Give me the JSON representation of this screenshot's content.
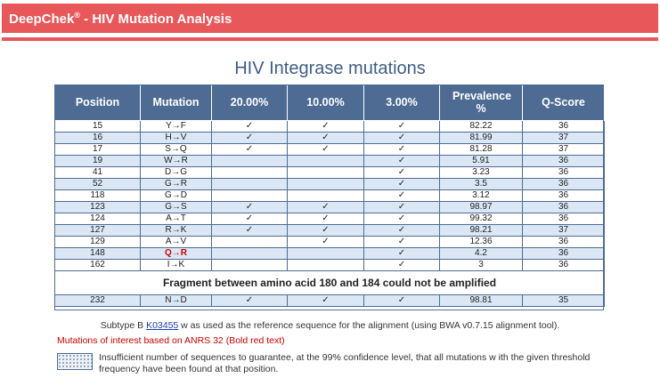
{
  "header": {
    "brand": "DeepChek",
    "reg": "®",
    "title_suffix": " - HIV Mutation Analysis"
  },
  "title": "HIV Integrase mutations",
  "table": {
    "columns": [
      "Position",
      "Mutation",
      "20.00%",
      "10.00%",
      "3.00%",
      "Prevalence %",
      "Q-Score"
    ],
    "rows": [
      {
        "position": "15",
        "mutation": "Y→F",
        "c20": "✓",
        "c10": "✓",
        "c3": "✓",
        "prevalence": "82.22",
        "qscore": "36",
        "highlight": false,
        "bold": false
      },
      {
        "position": "16",
        "mutation": "H→V",
        "c20": "✓",
        "c10": "✓",
        "c3": "✓",
        "prevalence": "81.99",
        "qscore": "37",
        "highlight": true,
        "bold": false
      },
      {
        "position": "17",
        "mutation": "S→Q",
        "c20": "✓",
        "c10": "✓",
        "c3": "✓",
        "prevalence": "81.28",
        "qscore": "37",
        "highlight": false,
        "bold": false
      },
      {
        "position": "19",
        "mutation": "W→R",
        "c20": "",
        "c10": "",
        "c3": "✓",
        "prevalence": "5.91",
        "qscore": "36",
        "highlight": true,
        "bold": false
      },
      {
        "position": "41",
        "mutation": "D→G",
        "c20": "",
        "c10": "",
        "c3": "✓",
        "prevalence": "3.23",
        "qscore": "36",
        "highlight": false,
        "bold": false
      },
      {
        "position": "52",
        "mutation": "G→R",
        "c20": "",
        "c10": "",
        "c3": "✓",
        "prevalence": "3.5",
        "qscore": "36",
        "highlight": true,
        "bold": false
      },
      {
        "position": "118",
        "mutation": "G→D",
        "c20": "",
        "c10": "",
        "c3": "✓",
        "prevalence": "3.12",
        "qscore": "36",
        "highlight": false,
        "bold": false
      },
      {
        "position": "123",
        "mutation": "G→S",
        "c20": "✓",
        "c10": "✓",
        "c3": "✓",
        "prevalence": "98.97",
        "qscore": "36",
        "highlight": true,
        "bold": false
      },
      {
        "position": "124",
        "mutation": "A→T",
        "c20": "✓",
        "c10": "✓",
        "c3": "✓",
        "prevalence": "99.32",
        "qscore": "36",
        "highlight": false,
        "bold": false
      },
      {
        "position": "127",
        "mutation": "R→K",
        "c20": "✓",
        "c10": "✓",
        "c3": "✓",
        "prevalence": "98.21",
        "qscore": "37",
        "highlight": true,
        "bold": false
      },
      {
        "position": "129",
        "mutation": "A→V",
        "c20": "",
        "c10": "✓",
        "c3": "✓",
        "prevalence": "12.36",
        "qscore": "36",
        "highlight": false,
        "bold": false
      },
      {
        "position": "148",
        "mutation": "Q→R",
        "c20": "",
        "c10": "",
        "c3": "✓",
        "prevalence": "4.2",
        "qscore": "36",
        "highlight": true,
        "bold": true
      },
      {
        "position": "162",
        "mutation": "I→K",
        "c20": "",
        "c10": "",
        "c3": "✓",
        "prevalence": "3",
        "qscore": "36",
        "highlight": false,
        "bold": false
      }
    ],
    "fragment_note": "Fragment between amino acid 180 and 184 could not be amplified",
    "last_row": {
      "position": "232",
      "mutation": "N→D",
      "c20": "✓",
      "c10": "✓",
      "c3": "✓",
      "prevalence": "98.81",
      "qscore": "35"
    }
  },
  "notes": {
    "subtype_prefix": "Subtype B ",
    "reference_link": "K03455",
    "subtype_suffix": " w as used as the reference sequence for the alignment (using BWA v0.7.15 alignment tool).",
    "interest": "Mutations of interest based on ANRS 32 (Bold red text)",
    "legend": "Insufficient number of sequences to guarantee, at the 99% confidence level, that all mutations w ith the given threshold frequency have been found at that position."
  },
  "colors": {
    "accent": "#e8575a",
    "table_header": "#4e6c93",
    "alt_row": "#dce7f5",
    "highlight_text": "#cc0000",
    "link": "#1a3fb0"
  }
}
